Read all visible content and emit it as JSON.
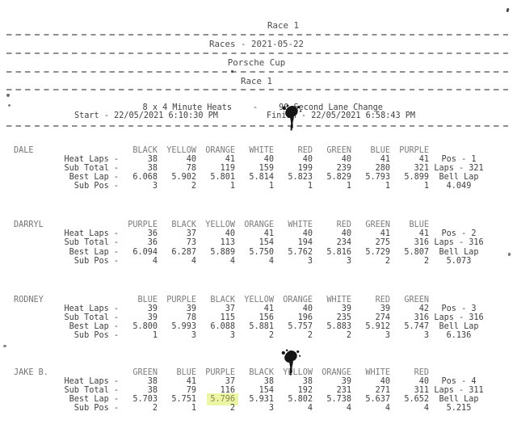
{
  "header": {
    "page_title": "Race 1",
    "collection": "Races - 2021-05-22",
    "series": "Porsche Cup",
    "race": "Race 1"
  },
  "format_line": {
    "heats": "8 x 4 Minute Heats",
    "separator": "-",
    "lane_change": "90 Second Lane Change"
  },
  "schedule": {
    "start": "Start - 22/05/2021 6:10:30 PM",
    "finish": "Finish - 22/05/2021 6:58:43 PM"
  },
  "row_labels": [
    "Heat Laps -",
    "Sub Total -",
    "Best Lap -",
    "Sub Pos -"
  ],
  "drivers": [
    {
      "name": "DALE",
      "lanes": [
        "BLACK",
        "YELLOW",
        "ORANGE",
        "WHITE",
        "RED",
        "GREEN",
        "BLUE",
        "PURPLE"
      ],
      "heat_laps": [
        "38",
        "40",
        "41",
        "40",
        "40",
        "40",
        "41",
        "41"
      ],
      "sub_total": [
        "38",
        "78",
        "119",
        "159",
        "199",
        "239",
        "280",
        "321"
      ],
      "best_lap": [
        "6.068",
        "5.902",
        "5.801",
        "5.814",
        "5.823",
        "5.829",
        "5.793",
        "5.899"
      ],
      "sub_pos": [
        "3",
        "2",
        "1",
        "1",
        "1",
        "1",
        "1",
        "1"
      ],
      "pos": "Pos - 1",
      "laps": "Laps - 321",
      "bell_label": "Bell Lap",
      "bell_lap": "4.049",
      "highlight": null
    },
    {
      "name": "DARRYL",
      "lanes": [
        "PURPLE",
        "BLACK",
        "YELLOW",
        "ORANGE",
        "WHITE",
        "RED",
        "GREEN",
        "BLUE"
      ],
      "heat_laps": [
        "36",
        "37",
        "40",
        "41",
        "40",
        "40",
        "41",
        "41"
      ],
      "sub_total": [
        "36",
        "73",
        "113",
        "154",
        "194",
        "234",
        "275",
        "316"
      ],
      "best_lap": [
        "6.094",
        "6.287",
        "5.889",
        "5.750",
        "5.762",
        "5.816",
        "5.729",
        "5.807"
      ],
      "sub_pos": [
        "4",
        "4",
        "4",
        "4",
        "3",
        "3",
        "2",
        "2"
      ],
      "pos": "Pos - 2",
      "laps": "Laps - 316",
      "bell_label": "Bell Lap",
      "bell_lap": "5.073",
      "highlight": null
    },
    {
      "name": "RODNEY",
      "lanes": [
        "BLUE",
        "PURPLE",
        "BLACK",
        "YELLOW",
        "ORANGE",
        "WHITE",
        "RED",
        "GREEN"
      ],
      "heat_laps": [
        "39",
        "39",
        "37",
        "41",
        "40",
        "39",
        "39",
        "42"
      ],
      "sub_total": [
        "39",
        "78",
        "115",
        "156",
        "196",
        "235",
        "274",
        "316"
      ],
      "best_lap": [
        "5.800",
        "5.993",
        "6.088",
        "5.881",
        "5.757",
        "5.883",
        "5.912",
        "5.747"
      ],
      "sub_pos": [
        "1",
        "3",
        "3",
        "2",
        "2",
        "2",
        "3",
        "3"
      ],
      "pos": "Pos - 3",
      "laps": "Laps - 316",
      "bell_label": "Bell Lap",
      "bell_lap": "6.136",
      "highlight": null
    },
    {
      "name": "JAKE B.",
      "lanes": [
        "GREEN",
        "BLUE",
        "PURPLE",
        "BLACK",
        "YELLOW",
        "ORANGE",
        "WHITE",
        "RED"
      ],
      "heat_laps": [
        "38",
        "41",
        "37",
        "38",
        "38",
        "39",
        "40",
        "40"
      ],
      "sub_total": [
        "38",
        "79",
        "116",
        "154",
        "192",
        "231",
        "271",
        "311"
      ],
      "best_lap": [
        "5.703",
        "5.751",
        "5.796",
        "5.931",
        "5.802",
        "5.738",
        "5.637",
        "5.652"
      ],
      "sub_pos": [
        "2",
        "1",
        "2",
        "3",
        "4",
        "4",
        "4",
        "4"
      ],
      "pos": "Pos - 4",
      "laps": "Laps - 311",
      "bell_label": "Bell Lap",
      "bell_lap": "5.215",
      "highlight": {
        "row": 2,
        "col": 2
      }
    }
  ],
  "colors": {
    "highlight": "#edf6a5",
    "text": "#3f3f3f",
    "muted": "#7c7c7c",
    "dash": "#8f8f8f"
  },
  "artifacts": {
    "ink_blot_count": 2,
    "ink_blot_note": "scanner ink blots over the word Finish and above JAKE B. lane header YELLOW"
  }
}
